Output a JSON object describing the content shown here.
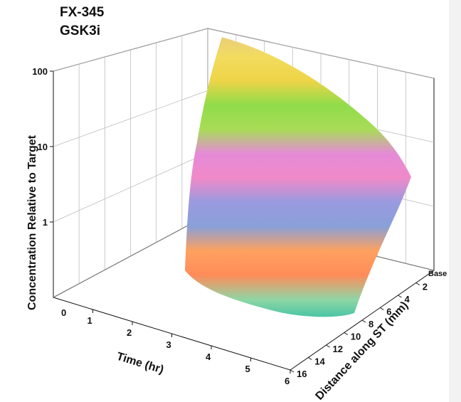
{
  "chart_data": {
    "type": "surface3d",
    "title_lines": [
      "FX-345",
      "GSK3i"
    ],
    "xlabel": "Time (hr)",
    "ylabel": "Distance along ST (mm)",
    "zlabel": "Concentration Relative to Target",
    "x_ticks": [
      "1",
      "2",
      "3",
      "4",
      "5",
      "6"
    ],
    "y_ticks": [
      "2",
      "4",
      "6",
      "8",
      "10",
      "12",
      "14",
      "16"
    ],
    "z_ticks": [
      "100",
      "10",
      "1",
      "0"
    ],
    "corner_label": "0",
    "base_label": "Base",
    "xlim": [
      0,
      6
    ],
    "ylim": [
      0,
      16
    ],
    "zscale": "log",
    "zlim": [
      0.1,
      100
    ],
    "grid": true,
    "colormap": [
      "#2fbfa6",
      "#8fd6a4",
      "#ff8c5a",
      "#ffa15e",
      "#8aa0d8",
      "#9a9ae0",
      "#f08ac8",
      "#e58ad8",
      "#a8dc56",
      "#90dc4a",
      "#eed447",
      "#f2dc60",
      "#e8c880"
    ]
  }
}
